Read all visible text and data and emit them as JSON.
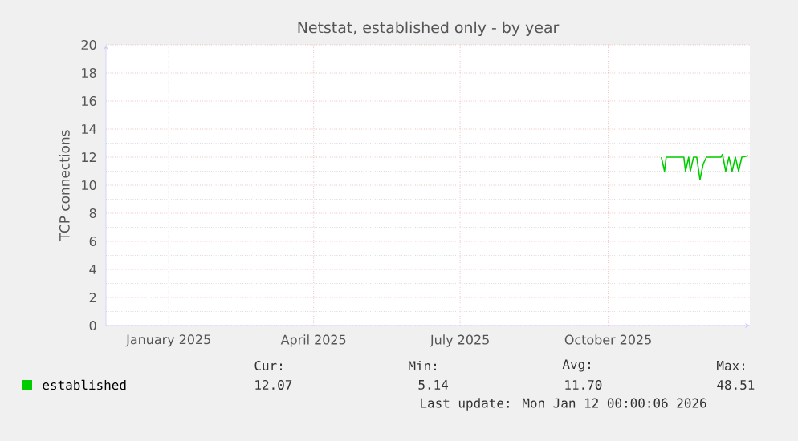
{
  "chart_data": {
    "type": "line",
    "title": "Netstat, established only - by year",
    "ylabel": "TCP connections",
    "xlim": [
      "2024-12-08",
      "2026-01-12"
    ],
    "xticks": [
      {
        "value": "2025-01-16",
        "label": "January 2025"
      },
      {
        "value": "2025-04-16",
        "label": "April 2025"
      },
      {
        "value": "2025-07-16",
        "label": "July 2025"
      },
      {
        "value": "2025-10-16",
        "label": "October 2025"
      }
    ],
    "ylim": [
      0,
      20
    ],
    "yticks": [
      0,
      2,
      4,
      6,
      8,
      10,
      12,
      14,
      16,
      18,
      20
    ],
    "grid": true,
    "legend": "bottom",
    "x": [
      "2025-11-18",
      "2025-11-20",
      "2025-11-21",
      "2025-12-02",
      "2025-12-03",
      "2025-12-05",
      "2025-12-06",
      "2025-12-08",
      "2025-12-10",
      "2025-12-12",
      "2025-12-14",
      "2025-12-16",
      "2025-12-25",
      "2025-12-26",
      "2025-12-28",
      "2025-12-30",
      "2026-01-01",
      "2026-01-03",
      "2026-01-05",
      "2026-01-07",
      "2026-01-11"
    ],
    "series": [
      {
        "name": "established",
        "color": "#00cc00",
        "values": [
          12.0,
          11.0,
          12.0,
          12.0,
          11.0,
          12.0,
          11.0,
          12.0,
          12.0,
          10.4,
          11.5,
          12.0,
          12.0,
          12.2,
          11.0,
          12.0,
          11.0,
          12.0,
          11.0,
          12.0,
          12.1
        ]
      }
    ],
    "annotations": [
      "Cur:",
      "12.07",
      "Min:",
      "5.14",
      "Avg:",
      "11.70",
      "Max:",
      "48.51",
      "Last update: Mon Jan 12 00:00:06 2026"
    ]
  }
}
